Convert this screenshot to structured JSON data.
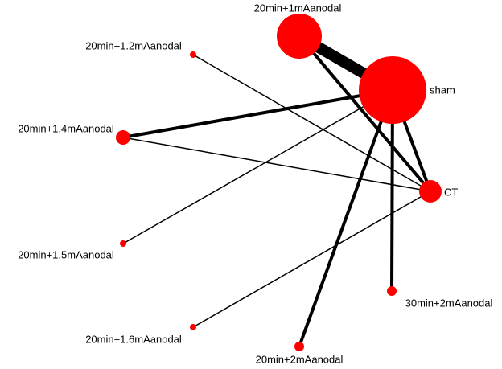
{
  "nodes": [
    {
      "label": "20min+1mAanodal"
    },
    {
      "label": "sham"
    },
    {
      "label": "20min+1.2mAanodal"
    },
    {
      "label": "20min+1.4mAanodal"
    },
    {
      "label": "CT"
    },
    {
      "label": "20min+1.5mAanodal"
    },
    {
      "label": "30min+2mAanodal"
    },
    {
      "label": "20min+1.6mAanodal"
    },
    {
      "label": "20min+2mAanodal"
    }
  ]
}
